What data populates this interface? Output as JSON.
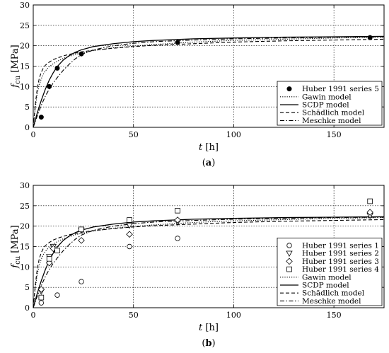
{
  "chart_data": [
    {
      "type": "scatter",
      "panel_label": "a",
      "xlabel": "t",
      "xlabel_unit": "[h]",
      "ylabel": "f",
      "ylabel_sub": "cu",
      "ylabel_unit": "[MPa]",
      "xlim": [
        0,
        175
      ],
      "ylim": [
        0,
        30
      ],
      "xticks": [
        0,
        50,
        100,
        150
      ],
      "yticks": [
        0,
        5,
        10,
        15,
        20,
        25,
        30
      ],
      "grid": true,
      "legend_position": "lower-right",
      "series": [
        {
          "name": "Huber 1991 series 5",
          "marker": "filled-circle",
          "x": [
            4,
            8,
            12,
            24,
            72,
            168
          ],
          "y": [
            2.5,
            10,
            14.5,
            18,
            20.8,
            22
          ]
        },
        {
          "name": "Gawin model",
          "line": "dotted",
          "kind": "model",
          "x": [
            0,
            1,
            2,
            3,
            4,
            5,
            6,
            8,
            10,
            12,
            15,
            18,
            21,
            24,
            30,
            40,
            50,
            60,
            80,
            100,
            125,
            150,
            175
          ],
          "y": [
            0,
            4.7,
            8.2,
            10.4,
            11.9,
            13.0,
            13.8,
            14.9,
            15.6,
            16.2,
            16.9,
            17.4,
            17.9,
            18.2,
            18.8,
            19.5,
            19.9,
            20.3,
            20.9,
            21.3,
            21.6,
            21.9,
            22.1
          ]
        },
        {
          "name": "SCDP model",
          "line": "solid",
          "kind": "model",
          "x": [
            0,
            2,
            4,
            6,
            8,
            10,
            12,
            15,
            18,
            21,
            24,
            30,
            40,
            50,
            60,
            80,
            100,
            125,
            150,
            175
          ],
          "y": [
            0,
            3.5,
            6.6,
            9.3,
            11.6,
            13.4,
            14.9,
            16.5,
            17.6,
            18.4,
            19.0,
            19.8,
            20.5,
            21.0,
            21.3,
            21.7,
            21.9,
            22.1,
            22.2,
            22.3
          ]
        },
        {
          "name": "Schädlich model",
          "line": "dashed",
          "kind": "model",
          "x": [
            0,
            1,
            2,
            3,
            4,
            5,
            6,
            8,
            10,
            12,
            15,
            18,
            24,
            30,
            40,
            50,
            60,
            80,
            100,
            125,
            150,
            175
          ],
          "y": [
            0,
            5.5,
            9.5,
            12.0,
            13.5,
            14.5,
            15.2,
            16.0,
            16.6,
            17.0,
            17.5,
            17.9,
            18.5,
            18.9,
            19.4,
            19.8,
            20.1,
            20.5,
            20.9,
            21.2,
            21.4,
            21.6
          ]
        },
        {
          "name": "Meschke model",
          "line": "dashdot",
          "kind": "model",
          "x": [
            0,
            2,
            4,
            6,
            8,
            10,
            12,
            15,
            18,
            21,
            24,
            30,
            40,
            50,
            60,
            80,
            100,
            125,
            150,
            175
          ],
          "y": [
            0,
            2.8,
            5.4,
            7.6,
            9.4,
            10.9,
            12.2,
            14.0,
            15.5,
            16.8,
            17.8,
            19.0,
            20.0,
            20.6,
            21.0,
            21.4,
            21.7,
            21.9,
            22.1,
            22.2
          ]
        }
      ]
    },
    {
      "type": "scatter",
      "panel_label": "b",
      "xlabel": "t",
      "xlabel_unit": "[h]",
      "ylabel": "f",
      "ylabel_sub": "cu",
      "ylabel_unit": "[MPa]",
      "xlim": [
        0,
        175
      ],
      "ylim": [
        0,
        30
      ],
      "xticks": [
        0,
        50,
        100,
        150
      ],
      "yticks": [
        0,
        5,
        10,
        15,
        20,
        25,
        30
      ],
      "grid": true,
      "legend_position": "lower-right",
      "series": [
        {
          "name": "Huber 1991 series 1",
          "marker": "circle",
          "x": [
            4,
            12,
            24,
            48,
            72
          ],
          "y": [
            1.2,
            3.1,
            6.4,
            15,
            17
          ]
        },
        {
          "name": "Huber 1991 series 2",
          "marker": "triangle-down",
          "x": [
            4,
            8,
            10,
            24,
            48,
            72,
            168
          ],
          "y": [
            4,
            12.5,
            15,
            19,
            20.2,
            21,
            22.6
          ]
        },
        {
          "name": "Huber 1991 series 3",
          "marker": "diamond",
          "x": [
            4,
            8,
            10,
            24,
            48,
            72,
            168
          ],
          "y": [
            4.5,
            11,
            14.5,
            16.5,
            18,
            21.5,
            23.4
          ]
        },
        {
          "name": "Huber 1991 series 4",
          "marker": "square",
          "x": [
            4,
            8,
            12,
            24,
            48,
            72,
            168
          ],
          "y": [
            2.5,
            12,
            14,
            19.2,
            21.5,
            23.8,
            26.1
          ]
        },
        {
          "name": "Gawin model",
          "line": "dotted",
          "kind": "model",
          "x": [
            0,
            1,
            2,
            3,
            4,
            5,
            6,
            8,
            10,
            12,
            15,
            18,
            21,
            24,
            30,
            40,
            50,
            60,
            80,
            100,
            125,
            150,
            175
          ],
          "y": [
            0,
            4.7,
            8.2,
            10.4,
            11.9,
            13.0,
            13.8,
            14.9,
            15.6,
            16.2,
            16.9,
            17.4,
            17.9,
            18.2,
            18.8,
            19.5,
            19.9,
            20.3,
            20.9,
            21.3,
            21.6,
            21.9,
            22.1
          ]
        },
        {
          "name": "SCDP model",
          "line": "solid",
          "kind": "model",
          "x": [
            0,
            2,
            4,
            6,
            8,
            10,
            12,
            15,
            18,
            21,
            24,
            30,
            40,
            50,
            60,
            80,
            100,
            125,
            150,
            175
          ],
          "y": [
            0,
            3.5,
            6.6,
            9.3,
            11.6,
            13.4,
            14.9,
            16.5,
            17.6,
            18.4,
            19.0,
            19.8,
            20.5,
            21.0,
            21.3,
            21.7,
            21.9,
            22.1,
            22.2,
            22.3
          ]
        },
        {
          "name": "Schädlich model",
          "line": "dashed",
          "kind": "model",
          "x": [
            0,
            1,
            2,
            3,
            4,
            5,
            6,
            8,
            10,
            12,
            15,
            18,
            24,
            30,
            40,
            50,
            60,
            80,
            100,
            125,
            150,
            175
          ],
          "y": [
            0,
            5.5,
            9.5,
            12.0,
            13.5,
            14.5,
            15.2,
            16.0,
            16.6,
            17.0,
            17.5,
            17.9,
            18.5,
            18.9,
            19.4,
            19.8,
            20.1,
            20.5,
            20.9,
            21.2,
            21.4,
            21.6
          ]
        },
        {
          "name": "Meschke model",
          "line": "dashdot",
          "kind": "model",
          "x": [
            0,
            2,
            4,
            6,
            8,
            10,
            12,
            15,
            18,
            21,
            24,
            30,
            40,
            50,
            60,
            80,
            100,
            125,
            150,
            175
          ],
          "y": [
            0,
            2.8,
            5.4,
            7.6,
            9.4,
            10.9,
            12.2,
            14.0,
            15.5,
            16.8,
            17.8,
            19.0,
            20.0,
            20.6,
            21.0,
            21.4,
            21.7,
            21.9,
            22.1,
            22.2
          ]
        }
      ]
    }
  ]
}
